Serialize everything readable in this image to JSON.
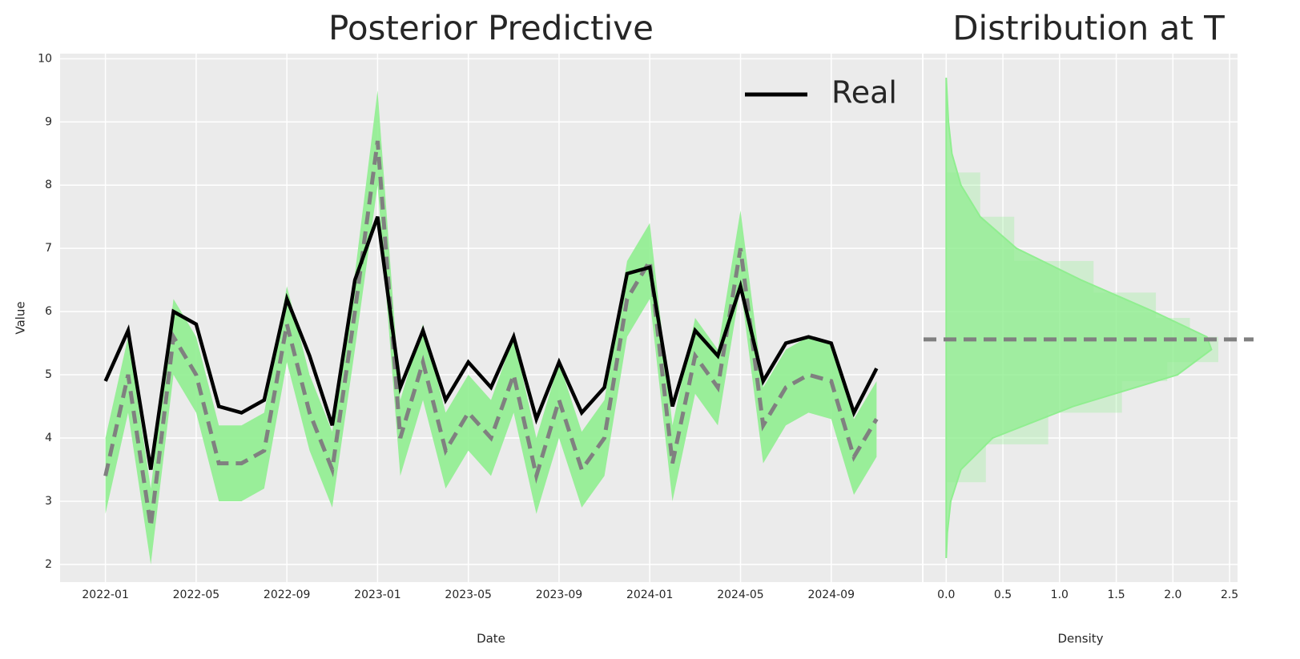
{
  "chart_data": [
    {
      "type": "line",
      "title": "Posterior Predictive",
      "xlabel": "Date",
      "ylabel": "Value",
      "x": [
        "2022-01",
        "2022-02",
        "2022-03",
        "2022-04",
        "2022-05",
        "2022-06",
        "2022-07",
        "2022-08",
        "2022-09",
        "2022-10",
        "2022-11",
        "2022-12",
        "2023-01",
        "2023-02",
        "2023-03",
        "2023-04",
        "2023-05",
        "2023-06",
        "2023-07",
        "2023-08",
        "2023-09",
        "2023-10",
        "2023-11",
        "2023-12",
        "2024-01",
        "2024-02",
        "2024-03",
        "2024-04",
        "2024-05",
        "2024-06",
        "2024-07",
        "2024-08",
        "2024-09",
        "2024-10",
        "2024-11"
      ],
      "series": [
        {
          "name": "Real",
          "color": "#000000",
          "values": [
            4.9,
            5.7,
            3.5,
            6.0,
            5.8,
            4.5,
            4.4,
            4.6,
            6.2,
            5.3,
            4.2,
            6.5,
            7.5,
            4.8,
            5.7,
            4.6,
            5.2,
            4.8,
            5.6,
            4.3,
            5.2,
            4.4,
            4.8,
            6.6,
            6.7,
            4.5,
            5.7,
            5.3,
            6.4,
            4.9,
            5.5,
            5.6,
            5.5,
            4.4,
            5.1
          ]
        }
      ],
      "mean_color": "#808080",
      "mean_values": [
        3.4,
        5.0,
        2.6,
        5.6,
        5.0,
        3.6,
        3.6,
        3.8,
        5.8,
        4.4,
        3.5,
        6.0,
        8.7,
        4.0,
        5.2,
        3.8,
        4.4,
        4.0,
        5.0,
        3.4,
        4.6,
        3.5,
        4.0,
        6.2,
        6.8,
        3.6,
        5.3,
        4.8,
        7.0,
        4.2,
        4.8,
        5.0,
        4.9,
        3.7,
        4.3
      ],
      "band_color": "#90ee90",
      "band_lower": [
        2.8,
        4.4,
        2.0,
        5.0,
        4.4,
        3.0,
        3.0,
        3.2,
        5.2,
        3.8,
        2.9,
        5.4,
        8.0,
        3.4,
        4.6,
        3.2,
        3.8,
        3.4,
        4.4,
        2.8,
        4.0,
        2.9,
        3.4,
        5.6,
        6.2,
        3.0,
        4.7,
        4.2,
        6.4,
        3.6,
        4.2,
        4.4,
        4.3,
        3.1,
        3.7
      ],
      "band_upper": [
        4.0,
        5.6,
        3.2,
        6.2,
        5.6,
        4.2,
        4.2,
        4.4,
        6.4,
        5.0,
        4.1,
        6.6,
        9.5,
        4.6,
        5.8,
        4.4,
        5.0,
        4.6,
        5.6,
        4.0,
        5.2,
        4.1,
        4.6,
        6.8,
        7.4,
        4.2,
        5.9,
        5.4,
        7.6,
        4.8,
        5.4,
        5.6,
        5.5,
        4.3,
        4.9
      ],
      "xlim": [
        "2021-11",
        "2025-01"
      ],
      "xticks": [
        "2022-01",
        "2022-05",
        "2022-09",
        "2023-01",
        "2023-05",
        "2023-09",
        "2024-01",
        "2024-05",
        "2024-09"
      ],
      "ylim": [
        1.72,
        10.08
      ],
      "yticks": [
        2,
        3,
        4,
        5,
        6,
        7,
        8,
        9,
        10
      ],
      "grid": true,
      "legend": "upper right"
    },
    {
      "type": "density",
      "title": "Distribution at T",
      "xlabel": "Density",
      "color": "#90ee90",
      "points": [
        2.1,
        2.5,
        3.0,
        3.5,
        4.0,
        4.5,
        5.0,
        5.4,
        5.6,
        6.0,
        6.5,
        7.0,
        7.5,
        8.0,
        8.5,
        9.0,
        9.7
      ],
      "density": [
        0,
        0.01,
        0.04,
        0.13,
        0.41,
        1.12,
        2.04,
        2.34,
        2.3,
        1.83,
        1.19,
        0.62,
        0.3,
        0.13,
        0.05,
        0.02,
        0
      ],
      "bins": [
        3.3,
        3.9,
        4.4,
        4.9,
        5.2,
        5.6,
        5.9,
        6.3,
        6.8,
        7.5,
        8.2
      ],
      "counts": [
        0.35,
        0.9,
        1.55,
        1.95,
        2.4,
        2.15,
        1.85,
        1.3,
        0.6,
        0.3
      ],
      "hline": 5.56,
      "hline_color": "#808080",
      "xlim": [
        -0.2,
        2.57
      ],
      "xticks": [
        {
          "value": 0,
          "label": "0.0"
        },
        0.5,
        {
          "value": 1,
          "label": "1.0"
        },
        1.5,
        {
          "value": 2,
          "label": "2.0"
        },
        2.5
      ],
      "ylim": [
        1.72,
        10.08
      ],
      "yticks": [
        2,
        3,
        4,
        5,
        6,
        7,
        8,
        9,
        10
      ],
      "grid": true
    }
  ]
}
